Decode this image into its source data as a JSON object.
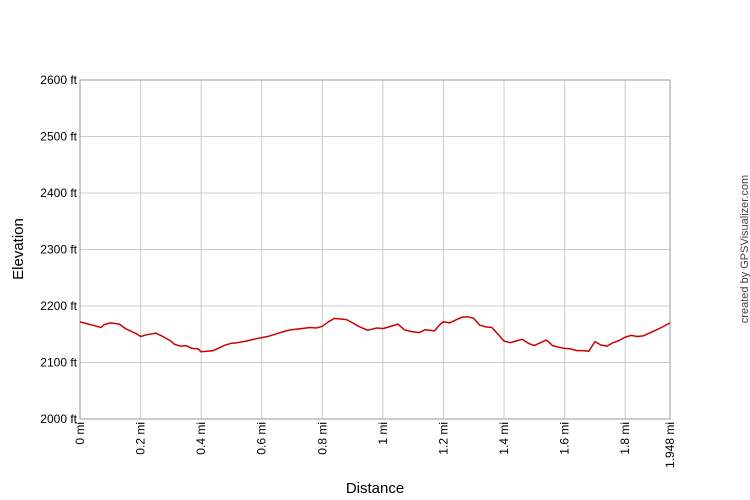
{
  "chart_data": {
    "type": "line",
    "title": "",
    "xlabel": "Distance",
    "ylabel": "Elevation",
    "credit": "created by GPSVisualizer.com",
    "xlim": [
      0,
      1.948
    ],
    "ylim": [
      2000,
      2600
    ],
    "y_ticks": [
      {
        "value": 2000,
        "label": "2000 ft"
      },
      {
        "value": 2100,
        "label": "2100 ft"
      },
      {
        "value": 2200,
        "label": "2200 ft"
      },
      {
        "value": 2300,
        "label": "2300 ft"
      },
      {
        "value": 2400,
        "label": "2400 ft"
      },
      {
        "value": 2500,
        "label": "2500 ft"
      },
      {
        "value": 2600,
        "label": "2600 ft"
      }
    ],
    "x_ticks": [
      {
        "value": 0,
        "label": "0 mi"
      },
      {
        "value": 0.2,
        "label": "0.2 mi"
      },
      {
        "value": 0.4,
        "label": "0.4 mi"
      },
      {
        "value": 0.6,
        "label": "0.6 mi"
      },
      {
        "value": 0.8,
        "label": "0.8 mi"
      },
      {
        "value": 1.0,
        "label": "1 mi"
      },
      {
        "value": 1.2,
        "label": "1.2 mi"
      },
      {
        "value": 1.4,
        "label": "1.4 mi"
      },
      {
        "value": 1.6,
        "label": "1.6 mi"
      },
      {
        "value": 1.8,
        "label": "1.8 mi"
      },
      {
        "value": 1.948,
        "label": "1.948 mi"
      }
    ],
    "grid": true,
    "line_color": "#cc0000",
    "series": [
      {
        "x": [
          0,
          0.02,
          0.05,
          0.07,
          0.08,
          0.1,
          0.13,
          0.15,
          0.17,
          0.19,
          0.2,
          0.22,
          0.25,
          0.27,
          0.28,
          0.3,
          0.31,
          0.33,
          0.35,
          0.37,
          0.39,
          0.4,
          0.42,
          0.44,
          0.46,
          0.48,
          0.5,
          0.52,
          0.55,
          0.58,
          0.6,
          0.62,
          0.65,
          0.68,
          0.7,
          0.73,
          0.76,
          0.78,
          0.8,
          0.82,
          0.84,
          0.86,
          0.88,
          0.9,
          0.92,
          0.95,
          0.98,
          1.0,
          1.02,
          1.05,
          1.07,
          1.09,
          1.12,
          1.14,
          1.17,
          1.19,
          1.2,
          1.22,
          1.24,
          1.26,
          1.28,
          1.3,
          1.32,
          1.34,
          1.36,
          1.38,
          1.4,
          1.42,
          1.44,
          1.46,
          1.48,
          1.5,
          1.52,
          1.54,
          1.56,
          1.58,
          1.6,
          1.62,
          1.64,
          1.66,
          1.68,
          1.7,
          1.72,
          1.74,
          1.76,
          1.78,
          1.8,
          1.82,
          1.84,
          1.86,
          1.88,
          1.9,
          1.92,
          1.948
        ],
        "y": [
          2172,
          2169,
          2165,
          2162,
          2167,
          2170,
          2168,
          2160,
          2155,
          2150,
          2146,
          2149,
          2152,
          2147,
          2144,
          2138,
          2133,
          2129,
          2130,
          2125,
          2124,
          2119,
          2120,
          2121,
          2126,
          2131,
          2134,
          2135,
          2138,
          2142,
          2144,
          2146,
          2151,
          2156,
          2158,
          2160,
          2162,
          2161,
          2164,
          2172,
          2178,
          2177,
          2176,
          2170,
          2164,
          2157,
          2161,
          2160,
          2163,
          2168,
          2158,
          2155,
          2153,
          2158,
          2156,
          2168,
          2172,
          2170,
          2175,
          2180,
          2181,
          2178,
          2166,
          2163,
          2162,
          2150,
          2138,
          2135,
          2138,
          2141,
          2134,
          2130,
          2135,
          2140,
          2130,
          2127,
          2125,
          2124,
          2121,
          2121,
          2120,
          2137,
          2131,
          2129,
          2135,
          2139,
          2145,
          2148,
          2146,
          2147,
          2152,
          2157,
          2162,
          2170
        ]
      }
    ]
  }
}
